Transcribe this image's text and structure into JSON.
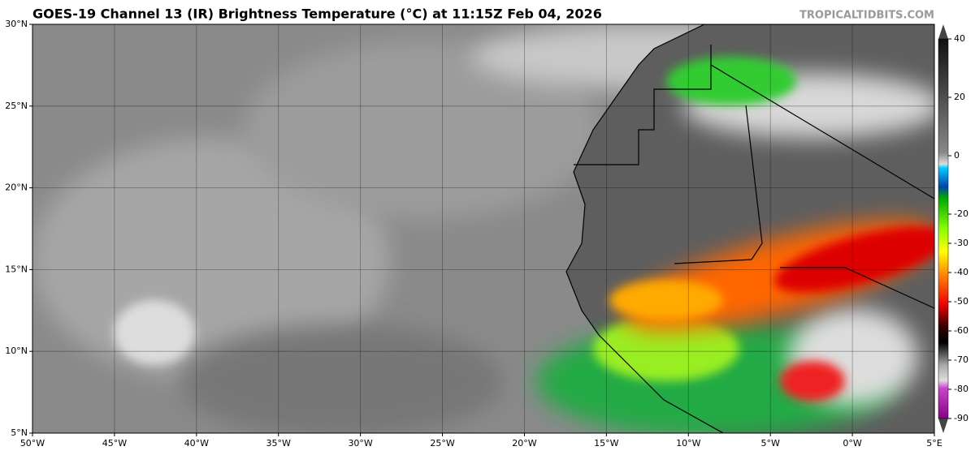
{
  "header": {
    "title": "GOES-19 Channel 13 (IR) Brightness Temperature (°C) at 11:15Z Feb 04, 2026",
    "credit": "TROPICALTIDBITS.COM"
  },
  "map": {
    "xlim": [
      -50,
      5
    ],
    "ylim": [
      5,
      30
    ],
    "xticks": [
      {
        "value": -50,
        "label": "50°W"
      },
      {
        "value": -45,
        "label": "45°W"
      },
      {
        "value": -40,
        "label": "40°W"
      },
      {
        "value": -35,
        "label": "35°W"
      },
      {
        "value": -30,
        "label": "30°W"
      },
      {
        "value": -25,
        "label": "25°W"
      },
      {
        "value": -20,
        "label": "20°W"
      },
      {
        "value": -15,
        "label": "15°W"
      },
      {
        "value": -10,
        "label": "10°W"
      },
      {
        "value": -5,
        "label": "5°W"
      },
      {
        "value": 0,
        "label": "0°W"
      },
      {
        "value": 5,
        "label": "5°E"
      }
    ],
    "yticks": [
      {
        "value": 30,
        "label": "30°N"
      },
      {
        "value": 25,
        "label": "25°N"
      },
      {
        "value": 20,
        "label": "20°N"
      },
      {
        "value": 15,
        "label": "15°N"
      },
      {
        "value": 10,
        "label": "10°N"
      },
      {
        "value": 5,
        "label": "5°N"
      }
    ]
  },
  "colorbar": {
    "range": [
      -90,
      40
    ],
    "ticks": [
      40,
      20,
      0,
      -20,
      -30,
      -40,
      -50,
      -60,
      -70,
      -80,
      -90
    ]
  }
}
